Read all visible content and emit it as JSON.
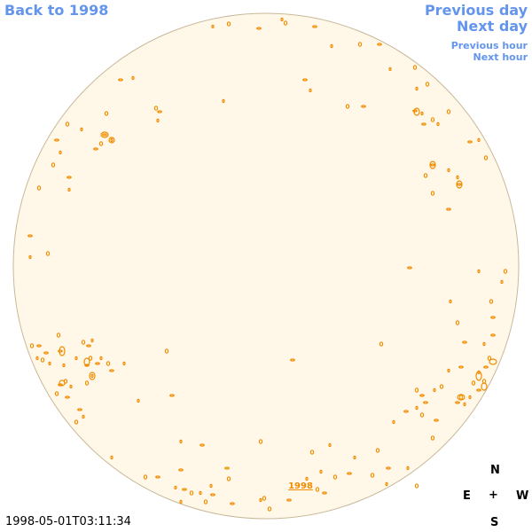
{
  "nav": {
    "back": "Back to 1998",
    "previous_day": "Previous day",
    "next_day": "Next day",
    "previous_hour": "Previous hour",
    "next_hour": "Next hour"
  },
  "disk": {
    "link_label": "1998",
    "fill_color": "#fff8e8",
    "outline_color": "#c8b89a",
    "contour_color": "#f08c00"
  },
  "compass": {
    "north": "N",
    "east": "E",
    "center": "+",
    "west": "W",
    "south": "S"
  },
  "timestamp": "1998-05-01T03:11:34"
}
